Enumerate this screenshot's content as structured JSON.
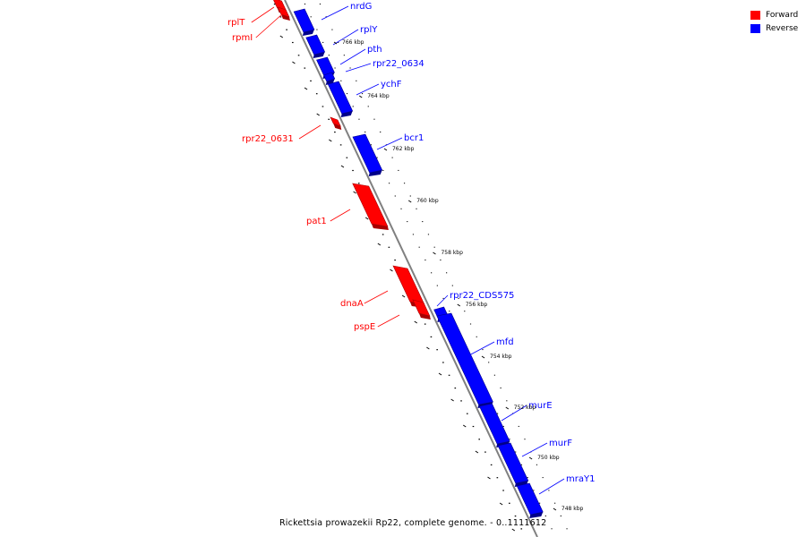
{
  "legend": {
    "forward": {
      "label": "Forward",
      "color": "#ff0000"
    },
    "reverse": {
      "label": "Reverse",
      "color": "#0000ff"
    }
  },
  "caption": "Rickettsia prowazekii Rp22, complete genome. - 0..1111612",
  "genes": [
    {
      "name": "rplT",
      "strand": "forward"
    },
    {
      "name": "rpmI",
      "strand": "forward"
    },
    {
      "name": "nrdG",
      "strand": "reverse"
    },
    {
      "name": "rplY",
      "strand": "reverse"
    },
    {
      "name": "pth",
      "strand": "reverse"
    },
    {
      "name": "rpr22_0634",
      "strand": "reverse"
    },
    {
      "name": "ychF",
      "strand": "reverse"
    },
    {
      "name": "rpr22_0631",
      "strand": "forward"
    },
    {
      "name": "bcr1",
      "strand": "reverse"
    },
    {
      "name": "pat1",
      "strand": "forward"
    },
    {
      "name": "dnaA",
      "strand": "forward"
    },
    {
      "name": "pspE",
      "strand": "forward"
    },
    {
      "name": "rpr22_CDS575",
      "strand": "reverse"
    },
    {
      "name": "mfd",
      "strand": "reverse"
    },
    {
      "name": "murE",
      "strand": "reverse"
    },
    {
      "name": "murF",
      "strand": "reverse"
    },
    {
      "name": "mraY1",
      "strand": "reverse"
    }
  ],
  "ticks": [
    "766 kbp",
    "764 kbp",
    "762 kbp",
    "760 kbp",
    "758 kbp",
    "756 kbp",
    "754 kbp",
    "752 kbp",
    "750 kbp",
    "748 kbp"
  ]
}
